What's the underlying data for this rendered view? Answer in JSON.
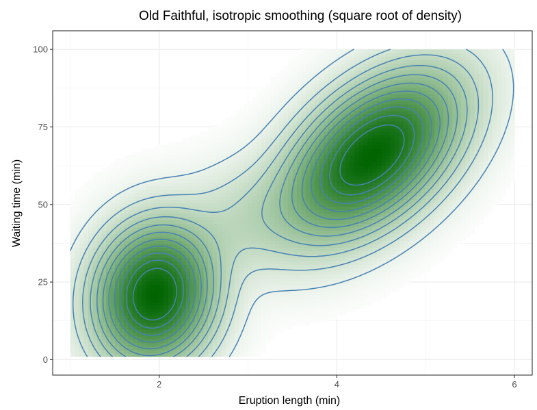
{
  "chart_data": {
    "type": "heatmap",
    "title": "Old Faithful, isotropic smoothing (square root of density)",
    "xlabel": "Eruption length (min)",
    "ylabel": "Waiting time (min)",
    "xlim": [
      0.8,
      6.2
    ],
    "ylim": [
      -5,
      106
    ],
    "xticks": [
      2,
      4,
      6
    ],
    "yticks": [
      0,
      25,
      50,
      75,
      100
    ],
    "x_tick_labels": [
      "2",
      "4",
      "6"
    ],
    "y_tick_labels": [
      "0",
      "25",
      "50",
      "75",
      "100"
    ],
    "grid": true,
    "raster_extent": {
      "x": [
        1,
        6
      ],
      "y": [
        1,
        100
      ]
    },
    "fill_color_low": "#ffffff",
    "fill_color_high": "#006400",
    "contour_color": "#4682b4",
    "contour_levels": 11,
    "modes": [
      {
        "x": 1.95,
        "y": 21,
        "peak": 1.0
      },
      {
        "x": 4.4,
        "y": 66,
        "peak": 1.0
      }
    ]
  }
}
